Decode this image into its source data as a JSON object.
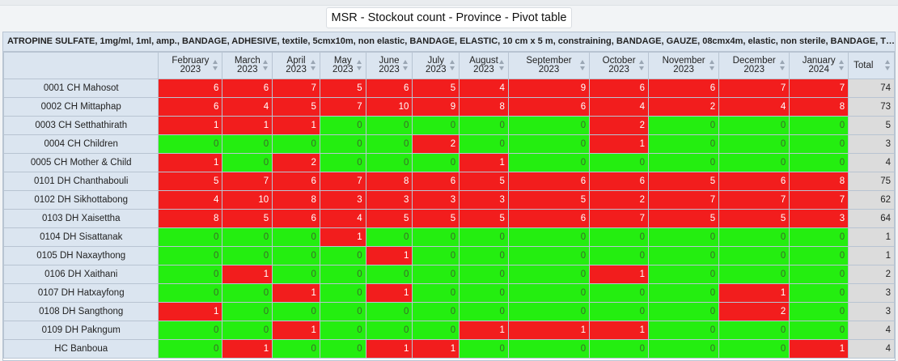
{
  "title": "MSR - Stockout count - Province - Pivot table",
  "banner": "ATROPINE SULFATE, 1mg/ml, 1ml, amp., BANDAGE, ADHESIVE, textile, 5cmx10m, non elastic, BANDAGE, ELASTIC, 10 cm x 5 m, constraining, BANDAGE, GAUZE, 08cmx4m, elastic, non sterile, BANDAGE, TRIANGULAR, ...",
  "colors": {
    "stockout": "#f21d1d",
    "in_stock": "#24ee10",
    "header": "#dbe5f0",
    "total": "#dcdcdc"
  },
  "columns": [
    [
      "February",
      "2023"
    ],
    [
      "March",
      "2023"
    ],
    [
      "April",
      "2023"
    ],
    [
      "May",
      "2023"
    ],
    [
      "June",
      "2023"
    ],
    [
      "July",
      "2023"
    ],
    [
      "August",
      "2023"
    ],
    [
      "September",
      "2023"
    ],
    [
      "October",
      "2023"
    ],
    [
      "November",
      "2023"
    ],
    [
      "December",
      "2023"
    ],
    [
      "January",
      "2024"
    ]
  ],
  "total_label": "Total",
  "rows": [
    {
      "name": "0001 CH Mahosot",
      "values": [
        6,
        6,
        7,
        5,
        6,
        5,
        4,
        9,
        6,
        6,
        7,
        7
      ],
      "total": 74
    },
    {
      "name": "0002 CH Mittaphap",
      "values": [
        6,
        4,
        5,
        7,
        10,
        9,
        8,
        6,
        4,
        2,
        4,
        8
      ],
      "total": 73
    },
    {
      "name": "0003 CH Setthathirath",
      "values": [
        1,
        1,
        1,
        0,
        0,
        0,
        0,
        0,
        2,
        0,
        0,
        0
      ],
      "total": 5
    },
    {
      "name": "0004 CH Children",
      "values": [
        0,
        0,
        0,
        0,
        0,
        2,
        0,
        0,
        1,
        0,
        0,
        0
      ],
      "total": 3
    },
    {
      "name": "0005 CH Mother & Child",
      "values": [
        1,
        0,
        2,
        0,
        0,
        0,
        1,
        0,
        0,
        0,
        0,
        0
      ],
      "total": 4
    },
    {
      "name": "0101 DH Chanthabouli",
      "values": [
        5,
        7,
        6,
        7,
        8,
        6,
        5,
        6,
        6,
        5,
        6,
        8
      ],
      "total": 75
    },
    {
      "name": "0102 DH Sikhottabong",
      "values": [
        4,
        10,
        8,
        3,
        3,
        3,
        3,
        5,
        2,
        7,
        7,
        7
      ],
      "total": 62
    },
    {
      "name": "0103 DH Xaisettha",
      "values": [
        8,
        5,
        6,
        4,
        5,
        5,
        5,
        6,
        7,
        5,
        5,
        3
      ],
      "total": 64
    },
    {
      "name": "0104 DH Sisattanak",
      "values": [
        0,
        0,
        0,
        1,
        0,
        0,
        0,
        0,
        0,
        0,
        0,
        0
      ],
      "total": 1
    },
    {
      "name": "0105 DH Naxaythong",
      "values": [
        0,
        0,
        0,
        0,
        1,
        0,
        0,
        0,
        0,
        0,
        0,
        0
      ],
      "total": 1
    },
    {
      "name": "0106 DH Xaithani",
      "values": [
        0,
        1,
        0,
        0,
        0,
        0,
        0,
        0,
        1,
        0,
        0,
        0
      ],
      "total": 2
    },
    {
      "name": "0107 DH Hatxayfong",
      "values": [
        0,
        0,
        1,
        0,
        1,
        0,
        0,
        0,
        0,
        0,
        1,
        0
      ],
      "total": 3
    },
    {
      "name": "0108 DH Sangthong",
      "values": [
        1,
        0,
        0,
        0,
        0,
        0,
        0,
        0,
        0,
        0,
        2,
        0
      ],
      "total": 3
    },
    {
      "name": "0109 DH Pakngum",
      "values": [
        0,
        0,
        1,
        0,
        0,
        0,
        1,
        1,
        1,
        0,
        0,
        0
      ],
      "total": 4
    },
    {
      "name": "HC Banboua",
      "values": [
        0,
        1,
        0,
        0,
        1,
        1,
        0,
        0,
        0,
        0,
        0,
        1
      ],
      "total": 4
    }
  ]
}
